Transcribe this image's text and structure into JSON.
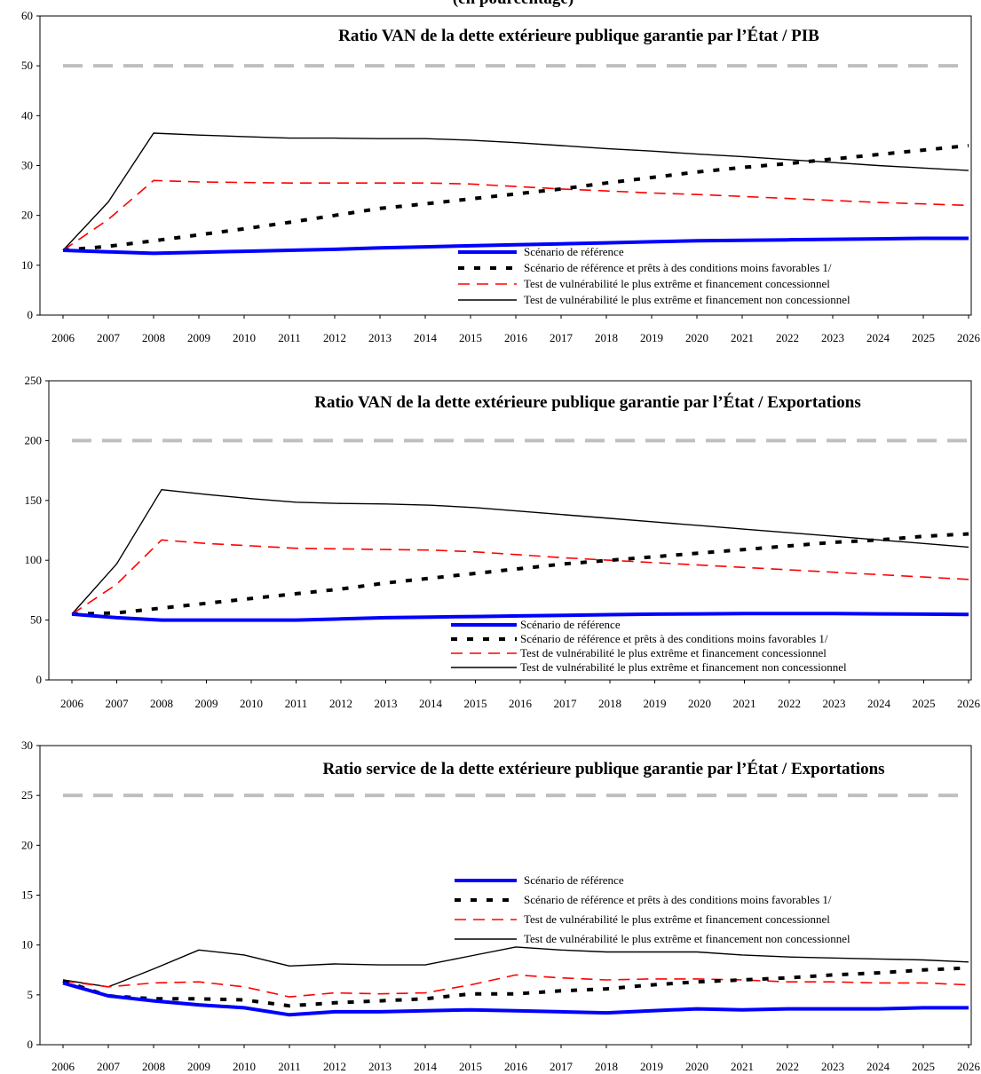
{
  "header_fragment": "(en pourcentage)",
  "chart_data": [
    {
      "type": "line",
      "title": "Ratio VAN de la dette extérieure publique garantie par l’État / PIB",
      "categories": [
        "2006",
        "2007",
        "2008",
        "2009",
        "2010",
        "2011",
        "2012",
        "2013",
        "2014",
        "2015",
        "2016",
        "2017",
        "2018",
        "2019",
        "2020",
        "2021",
        "2022",
        "2023",
        "2024",
        "2025",
        "2026"
      ],
      "ylim": [
        0,
        60
      ],
      "yticks": [
        0,
        10,
        20,
        30,
        40,
        50,
        60
      ],
      "threshold": 50,
      "legend_position": "bottom-right",
      "series": [
        {
          "name": "Scénario de référence",
          "style": "baseline",
          "values": [
            13,
            12.7,
            12.4,
            12.6,
            12.8,
            13,
            13.2,
            13.5,
            13.7,
            13.9,
            14.1,
            14.3,
            14.5,
            14.7,
            14.9,
            15,
            15.1,
            15.2,
            15.3,
            15.4,
            15.4
          ]
        },
        {
          "name": "Scénario de référence et prêts à des conditions moins favorables 1/",
          "style": "dotted",
          "values": [
            13,
            13.8,
            14.9,
            16.1,
            17.3,
            18.6,
            20,
            21.4,
            22.3,
            23.3,
            24.3,
            25.3,
            26.5,
            27.6,
            28.7,
            29.6,
            30.4,
            31.3,
            32.2,
            33.1,
            34
          ]
        },
        {
          "name": "Test de vulnérabilité le plus extrême et financement concessionnel",
          "style": "dashed",
          "values": [
            13,
            19.2,
            27,
            26.7,
            26.6,
            26.5,
            26.5,
            26.5,
            26.5,
            26.3,
            25.8,
            25.3,
            24.9,
            24.5,
            24.2,
            23.8,
            23.4,
            23,
            22.6,
            22.3,
            22
          ]
        },
        {
          "name": "Test de vulnérabilité le plus extrême et financement non concessionnel",
          "style": "thin",
          "values": [
            13,
            22.7,
            36.5,
            36.1,
            35.8,
            35.5,
            35.5,
            35.4,
            35.4,
            35.1,
            34.6,
            34,
            33.4,
            32.9,
            32.3,
            31.8,
            31.2,
            30.6,
            30,
            29.5,
            29
          ]
        }
      ]
    },
    {
      "type": "line",
      "title": "Ratio VAN de la dette extérieure publique garantie par l’État / Exportations",
      "categories": [
        "2006",
        "2007",
        "2008",
        "2009",
        "2010",
        "2011",
        "2012",
        "2013",
        "2014",
        "2015",
        "2016",
        "2017",
        "2018",
        "2019",
        "2020",
        "2021",
        "2022",
        "2023",
        "2024",
        "2025",
        "2026"
      ],
      "ylim": [
        0,
        250
      ],
      "yticks": [
        0,
        50,
        100,
        150,
        200,
        250
      ],
      "threshold": 200,
      "legend_position": "bottom-right",
      "series": [
        {
          "name": "Scénario de référence",
          "style": "baseline",
          "values": [
            55,
            52,
            50,
            50,
            50,
            50,
            51,
            52,
            52.5,
            53,
            53.5,
            54,
            54.5,
            55,
            55.2,
            55.5,
            55.5,
            55.5,
            55.2,
            55,
            54.7
          ]
        },
        {
          "name": "Scénario de référence et prêts à des conditions moins favorables 1/",
          "style": "dotted",
          "values": [
            55,
            56,
            60,
            64,
            68,
            72,
            76,
            81,
            85,
            89,
            93,
            97,
            100,
            103,
            106,
            109,
            112,
            115,
            117,
            120,
            122
          ]
        },
        {
          "name": "Test de vulnérabilité le plus extrême et financement concessionnel",
          "style": "dashed",
          "values": [
            55,
            80,
            117,
            114,
            112,
            110,
            109.5,
            109,
            108.5,
            107,
            104.5,
            102,
            100,
            98,
            96,
            94,
            92,
            90,
            88,
            86,
            84
          ]
        },
        {
          "name": "Test de vulnérabilité le plus extrême et financement non concessionnel",
          "style": "thin",
          "values": [
            55,
            97,
            159,
            155,
            151.5,
            148.5,
            147.5,
            147,
            146,
            144,
            141,
            138,
            135,
            132,
            129,
            126,
            123,
            120,
            117,
            114,
            111
          ]
        }
      ]
    },
    {
      "type": "line",
      "title": "Ratio service de la dette extérieure publique garantie par l’État / Exportations",
      "categories": [
        "2006",
        "2007",
        "2008",
        "2009",
        "2010",
        "2011",
        "2012",
        "2013",
        "2014",
        "2015",
        "2016",
        "2017",
        "2018",
        "2019",
        "2020",
        "2021",
        "2022",
        "2023",
        "2024",
        "2025",
        "2026"
      ],
      "ylim": [
        0,
        30
      ],
      "yticks": [
        0,
        5,
        10,
        15,
        20,
        25,
        30
      ],
      "threshold": 25,
      "legend_position": "middle-right",
      "series": [
        {
          "name": "Scénario de référence",
          "style": "baseline",
          "values": [
            6.2,
            4.9,
            4.4,
            4.0,
            3.7,
            3.0,
            3.3,
            3.3,
            3.4,
            3.5,
            3.4,
            3.3,
            3.2,
            3.4,
            3.6,
            3.5,
            3.6,
            3.6,
            3.6,
            3.7,
            3.7
          ]
        },
        {
          "name": "Scénario de référence et prêts à des conditions moins favorables 1/",
          "style": "dotted",
          "values": [
            6.4,
            4.9,
            4.6,
            4.6,
            4.5,
            3.9,
            4.2,
            4.4,
            4.6,
            5.1,
            5.1,
            5.4,
            5.6,
            6.0,
            6.3,
            6.5,
            6.7,
            7.0,
            7.2,
            7.5,
            7.7
          ]
        },
        {
          "name": "Test de vulnérabilité le plus extrême et financement concessionnel",
          "style": "dashed",
          "values": [
            6.4,
            5.8,
            6.2,
            6.3,
            5.8,
            4.8,
            5.2,
            5.1,
            5.2,
            6.0,
            7.0,
            6.7,
            6.5,
            6.6,
            6.6,
            6.5,
            6.3,
            6.3,
            6.2,
            6.2,
            6.0
          ]
        },
        {
          "name": "Test de vulnérabilité le plus extrême et financement non concessionnel",
          "style": "thin",
          "values": [
            6.5,
            5.8,
            7.6,
            9.5,
            9.0,
            7.9,
            8.1,
            8.0,
            8.0,
            8.9,
            9.8,
            9.5,
            9.3,
            9.3,
            9.3,
            9.0,
            8.8,
            8.7,
            8.6,
            8.5,
            8.3
          ]
        }
      ]
    }
  ],
  "colors": {
    "baseline": "#0000ff",
    "dotted": "#000000",
    "dashed": "#ff0000",
    "thin": "#000000",
    "threshold": "#bfbfbf"
  }
}
